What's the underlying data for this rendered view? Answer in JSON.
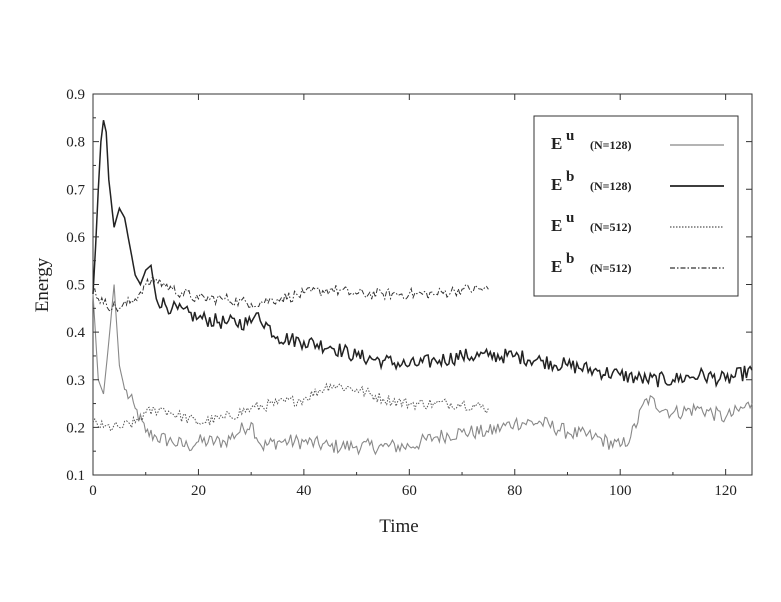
{
  "chart_data": {
    "type": "line",
    "xlabel": "Time",
    "ylabel": "Energy",
    "xlim": [
      0,
      125
    ],
    "ylim": [
      0.1,
      0.9
    ],
    "x_ticks": [
      "0",
      "20",
      "40",
      "60",
      "80",
      "100",
      "120"
    ],
    "y_ticks": [
      "0.1",
      "0.2",
      "0.3",
      "0.4",
      "0.5",
      "0.6",
      "0.7",
      "0.8",
      "0.9"
    ],
    "grid": false,
    "legend_position": "top-right",
    "series": [
      {
        "id": "eu128",
        "symbol": "E",
        "superscript": "u",
        "label": "(N=128)",
        "style": "solid-light",
        "color": "#888888",
        "points": [
          [
            0,
            0.48
          ],
          [
            1,
            0.3
          ],
          [
            2,
            0.27
          ],
          [
            3,
            0.38
          ],
          [
            4,
            0.5
          ],
          [
            5,
            0.33
          ],
          [
            6,
            0.28
          ],
          [
            8,
            0.24
          ],
          [
            10,
            0.19
          ],
          [
            12,
            0.18
          ],
          [
            15,
            0.17
          ],
          [
            18,
            0.16
          ],
          [
            20,
            0.17
          ],
          [
            25,
            0.17
          ],
          [
            30,
            0.21
          ],
          [
            32,
            0.16
          ],
          [
            35,
            0.17
          ],
          [
            40,
            0.17
          ],
          [
            45,
            0.16
          ],
          [
            50,
            0.16
          ],
          [
            55,
            0.16
          ],
          [
            60,
            0.16
          ],
          [
            65,
            0.18
          ],
          [
            70,
            0.19
          ],
          [
            75,
            0.19
          ],
          [
            80,
            0.21
          ],
          [
            85,
            0.21
          ],
          [
            90,
            0.19
          ],
          [
            95,
            0.18
          ],
          [
            100,
            0.16
          ],
          [
            102,
            0.18
          ],
          [
            105,
            0.26
          ],
          [
            110,
            0.23
          ],
          [
            115,
            0.24
          ],
          [
            120,
            0.22
          ],
          [
            125,
            0.25
          ]
        ]
      },
      {
        "id": "eb128",
        "symbol": "E",
        "superscript": "b",
        "label": "(N=128)",
        "style": "solid-dark",
        "color": "#222222",
        "points": [
          [
            0,
            0.48
          ],
          [
            0.5,
            0.58
          ],
          [
            1,
            0.7
          ],
          [
            1.5,
            0.8
          ],
          [
            2,
            0.845
          ],
          [
            2.5,
            0.82
          ],
          [
            3,
            0.72
          ],
          [
            4,
            0.62
          ],
          [
            5,
            0.66
          ],
          [
            6,
            0.64
          ],
          [
            7,
            0.58
          ],
          [
            8,
            0.52
          ],
          [
            9,
            0.5
          ],
          [
            10,
            0.53
          ],
          [
            11,
            0.54
          ],
          [
            12,
            0.47
          ],
          [
            15,
            0.45
          ],
          [
            20,
            0.43
          ],
          [
            25,
            0.42
          ],
          [
            30,
            0.42
          ],
          [
            31,
            0.44
          ],
          [
            35,
            0.39
          ],
          [
            40,
            0.38
          ],
          [
            45,
            0.37
          ],
          [
            50,
            0.35
          ],
          [
            55,
            0.34
          ],
          [
            60,
            0.33
          ],
          [
            65,
            0.34
          ],
          [
            70,
            0.35
          ],
          [
            75,
            0.35
          ],
          [
            80,
            0.35
          ],
          [
            85,
            0.34
          ],
          [
            90,
            0.33
          ],
          [
            95,
            0.32
          ],
          [
            100,
            0.31
          ],
          [
            105,
            0.3
          ],
          [
            110,
            0.3
          ],
          [
            115,
            0.31
          ],
          [
            120,
            0.3
          ],
          [
            125,
            0.32
          ]
        ]
      },
      {
        "id": "eu512",
        "symbol": "E",
        "superscript": "u",
        "label": "(N=512)",
        "style": "dotted",
        "color": "#555555",
        "points": [
          [
            0,
            0.21
          ],
          [
            2,
            0.2
          ],
          [
            5,
            0.2
          ],
          [
            8,
            0.21
          ],
          [
            10,
            0.23
          ],
          [
            13,
            0.24
          ],
          [
            15,
            0.23
          ],
          [
            20,
            0.21
          ],
          [
            25,
            0.22
          ],
          [
            30,
            0.24
          ],
          [
            35,
            0.25
          ],
          [
            40,
            0.26
          ],
          [
            45,
            0.29
          ],
          [
            50,
            0.28
          ],
          [
            55,
            0.26
          ],
          [
            60,
            0.25
          ],
          [
            65,
            0.25
          ],
          [
            70,
            0.25
          ],
          [
            75,
            0.24
          ]
        ]
      },
      {
        "id": "eb512",
        "symbol": "E",
        "superscript": "b",
        "label": "(N=512)",
        "style": "dash-dot",
        "color": "#333333",
        "points": [
          [
            0,
            0.49
          ],
          [
            2,
            0.46
          ],
          [
            5,
            0.45
          ],
          [
            8,
            0.47
          ],
          [
            10,
            0.5
          ],
          [
            12,
            0.51
          ],
          [
            15,
            0.49
          ],
          [
            20,
            0.47
          ],
          [
            25,
            0.47
          ],
          [
            30,
            0.46
          ],
          [
            35,
            0.47
          ],
          [
            40,
            0.48
          ],
          [
            45,
            0.49
          ],
          [
            50,
            0.48
          ],
          [
            55,
            0.48
          ],
          [
            60,
            0.48
          ],
          [
            65,
            0.48
          ],
          [
            70,
            0.49
          ],
          [
            75,
            0.49
          ]
        ]
      }
    ]
  }
}
